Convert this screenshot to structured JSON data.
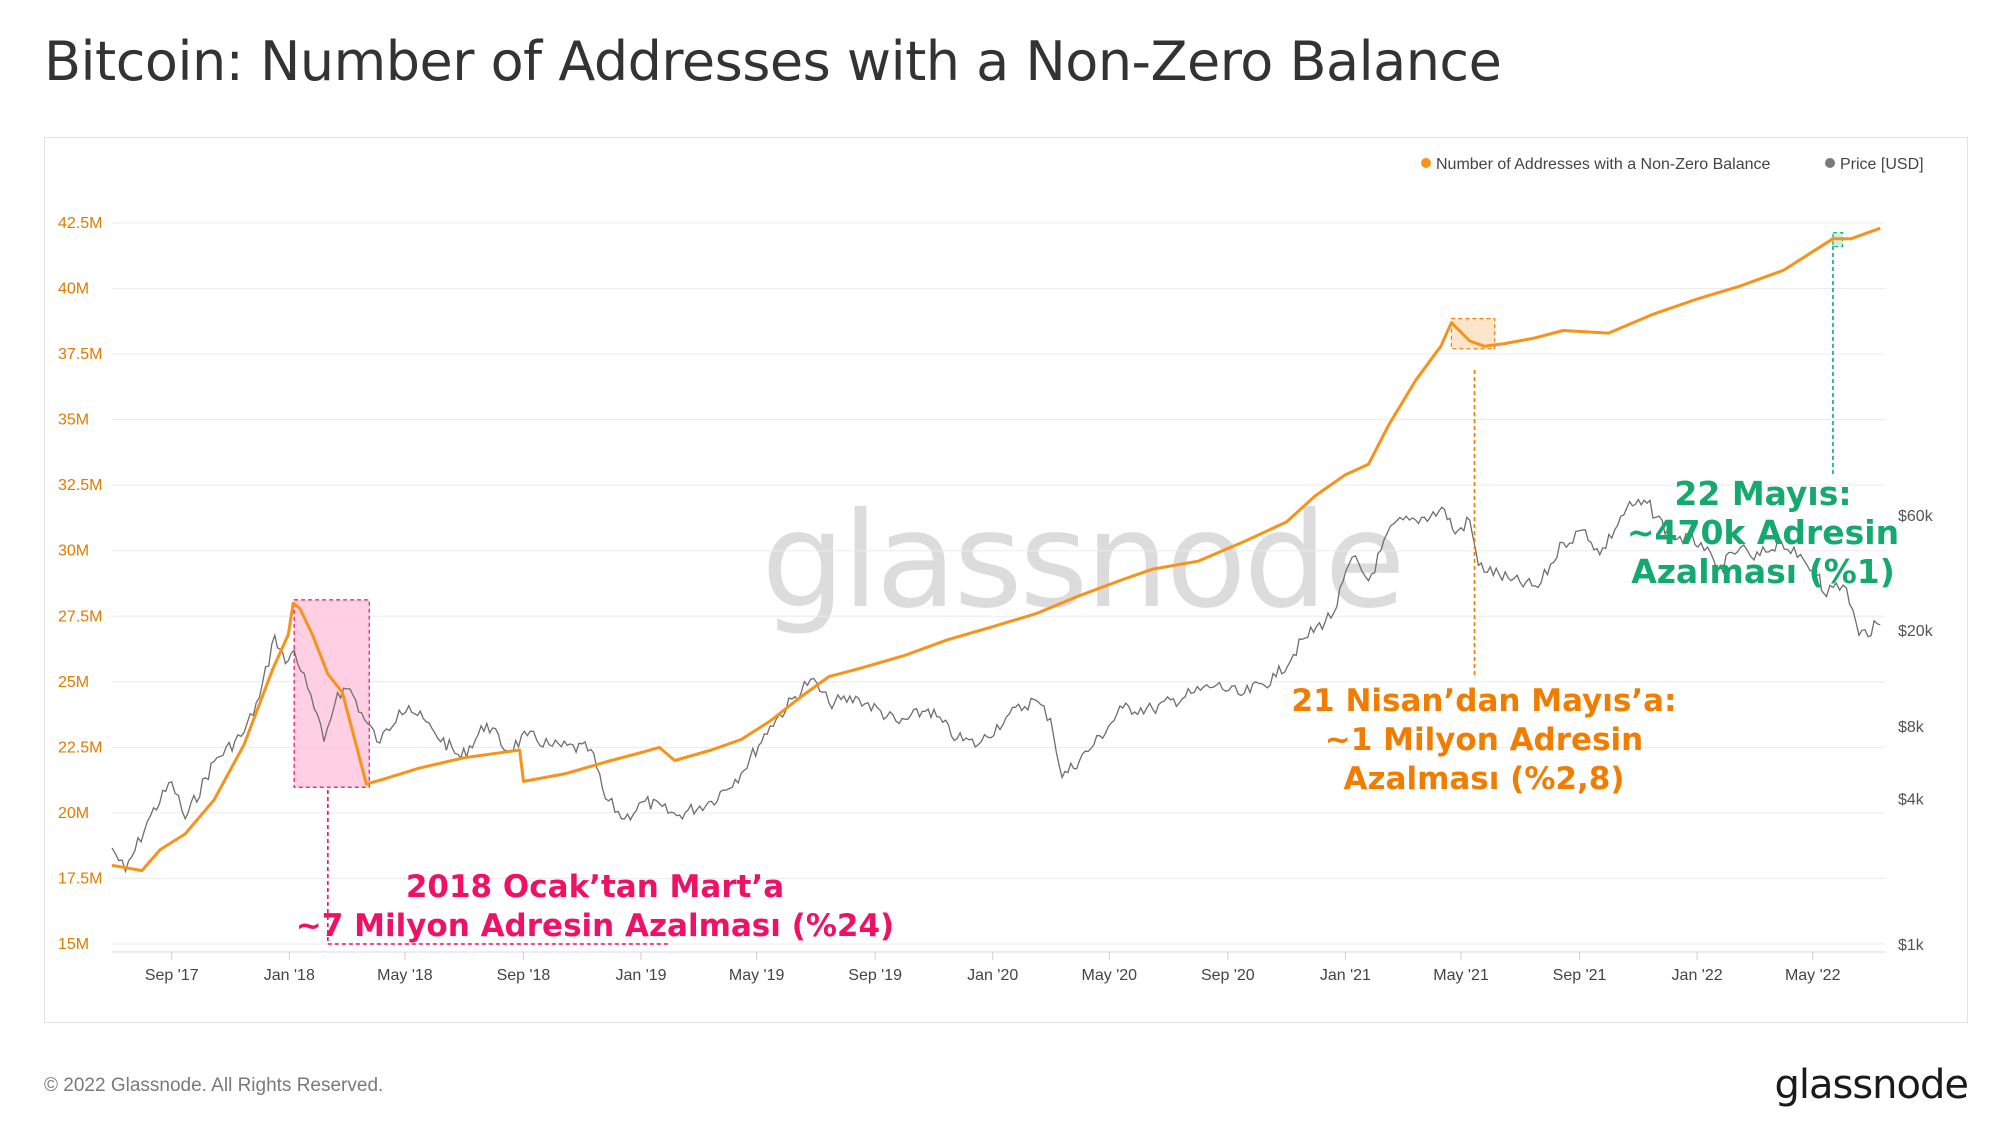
{
  "title": "Bitcoin: Number of Addresses with a Non-Zero Balance",
  "footer": "© 2022 Glassnode. All Rights Reserved.",
  "brand": "glassnode",
  "watermark": "glassnode",
  "colors": {
    "addresses": "#f7931a",
    "price": "#6e6e6e",
    "pink": "#ee1166",
    "green": "#15a86f",
    "orange_text": "#f07d00"
  },
  "chart_data": {
    "type": "line",
    "legend_placement": "top-right",
    "x_ticks": [
      "Sep '17",
      "Jan '18",
      "May '18",
      "Sep '18",
      "Jan '19",
      "May '19",
      "Sep '19",
      "Jan '20",
      "May '20",
      "Sep '20",
      "Jan '21",
      "May '21",
      "Sep '21",
      "Jan '22",
      "May '22"
    ],
    "y_left_ticks": [
      "15M",
      "17.5M",
      "20M",
      "22.5M",
      "25M",
      "27.5M",
      "30M",
      "32.5M",
      "35M",
      "37.5M",
      "40M",
      "42.5M"
    ],
    "y_left_values": [
      15,
      17.5,
      20,
      22.5,
      25,
      27.5,
      30,
      32.5,
      35,
      37.5,
      40,
      42.5
    ],
    "y_right_ticks": [
      "$1k",
      "$4k",
      "$8k",
      "$20k",
      "$60k"
    ],
    "y_right_values": [
      1000,
      4000,
      8000,
      20000,
      60000
    ],
    "y_right_scale": "log",
    "grid": "horizontal",
    "series": [
      {
        "name": "Number of Addresses with a Non-Zero Balance",
        "unit": "M",
        "points": [
          [
            "2017-07-01",
            18.0
          ],
          [
            "2017-08-01",
            17.8
          ],
          [
            "2017-08-20",
            18.6
          ],
          [
            "2017-09-15",
            19.2
          ],
          [
            "2017-10-15",
            20.5
          ],
          [
            "2017-11-15",
            22.6
          ],
          [
            "2017-12-15",
            25.5
          ],
          [
            "2017-12-31",
            26.8
          ],
          [
            "2018-01-05",
            28.0
          ],
          [
            "2018-01-12",
            27.8
          ],
          [
            "2018-01-25",
            26.8
          ],
          [
            "2018-02-10",
            25.3
          ],
          [
            "2018-02-25",
            24.6
          ],
          [
            "2018-03-12",
            22.5
          ],
          [
            "2018-03-22",
            21.1
          ],
          [
            "2018-04-10",
            21.3
          ],
          [
            "2018-05-15",
            21.7
          ],
          [
            "2018-07-01",
            22.1
          ],
          [
            "2018-08-28",
            22.4
          ],
          [
            "2018-09-01",
            21.2
          ],
          [
            "2018-10-15",
            21.5
          ],
          [
            "2018-12-01",
            22.0
          ],
          [
            "2019-01-01",
            22.3
          ],
          [
            "2019-01-20",
            22.5
          ],
          [
            "2019-02-05",
            22.0
          ],
          [
            "2019-03-15",
            22.4
          ],
          [
            "2019-04-15",
            22.8
          ],
          [
            "2019-05-15",
            23.5
          ],
          [
            "2019-06-15",
            24.4
          ],
          [
            "2019-07-15",
            25.2
          ],
          [
            "2019-08-15",
            25.5
          ],
          [
            "2019-10-01",
            26.0
          ],
          [
            "2019-11-15",
            26.6
          ],
          [
            "2020-01-01",
            27.1
          ],
          [
            "2020-02-15",
            27.6
          ],
          [
            "2020-04-01",
            28.3
          ],
          [
            "2020-05-15",
            28.9
          ],
          [
            "2020-06-15",
            29.3
          ],
          [
            "2020-08-01",
            29.6
          ],
          [
            "2020-09-15",
            30.3
          ],
          [
            "2020-11-01",
            31.1
          ],
          [
            "2020-12-01",
            32.1
          ],
          [
            "2021-01-01",
            32.9
          ],
          [
            "2021-01-25",
            33.3
          ],
          [
            "2021-02-15",
            34.8
          ],
          [
            "2021-03-15",
            36.5
          ],
          [
            "2021-04-10",
            37.8
          ],
          [
            "2021-04-21",
            38.7
          ],
          [
            "2021-05-10",
            38.0
          ],
          [
            "2021-05-25",
            37.8
          ],
          [
            "2021-06-15",
            37.9
          ],
          [
            "2021-07-15",
            38.1
          ],
          [
            "2021-08-15",
            38.4
          ],
          [
            "2021-10-01",
            38.3
          ],
          [
            "2021-11-15",
            39.0
          ],
          [
            "2022-01-01",
            39.6
          ],
          [
            "2022-02-15",
            40.1
          ],
          [
            "2022-04-01",
            40.7
          ],
          [
            "2022-05-22",
            41.9
          ],
          [
            "2022-06-10",
            41.9
          ],
          [
            "2022-07-10",
            42.3
          ]
        ]
      },
      {
        "name": "Price [USD]",
        "unit": "USD",
        "points": [
          [
            "2017-07-01",
            2500
          ],
          [
            "2017-07-15",
            2000
          ],
          [
            "2017-08-10",
            3400
          ],
          [
            "2017-09-01",
            4700
          ],
          [
            "2017-09-15",
            3300
          ],
          [
            "2017-10-15",
            5700
          ],
          [
            "2017-11-15",
            7500
          ],
          [
            "2017-12-01",
            10500
          ],
          [
            "2017-12-17",
            19000
          ],
          [
            "2017-12-28",
            14500
          ],
          [
            "2018-01-06",
            16500
          ],
          [
            "2018-01-20",
            11500
          ],
          [
            "2018-02-06",
            6900
          ],
          [
            "2018-02-20",
            11000
          ],
          [
            "2018-03-05",
            11400
          ],
          [
            "2018-03-20",
            8500
          ],
          [
            "2018-04-05",
            6800
          ],
          [
            "2018-04-25",
            9300
          ],
          [
            "2018-05-05",
            9700
          ],
          [
            "2018-06-01",
            7500
          ],
          [
            "2018-06-28",
            5900
          ],
          [
            "2018-07-25",
            8200
          ],
          [
            "2018-08-15",
            6300
          ],
          [
            "2018-09-05",
            7300
          ],
          [
            "2018-10-01",
            6600
          ],
          [
            "2018-11-10",
            6400
          ],
          [
            "2018-11-25",
            4000
          ],
          [
            "2018-12-15",
            3300
          ],
          [
            "2019-01-05",
            3900
          ],
          [
            "2019-02-07",
            3400
          ],
          [
            "2019-03-15",
            3900
          ],
          [
            "2019-04-15",
            5100
          ],
          [
            "2019-05-15",
            8000
          ],
          [
            "2019-06-26",
            12500
          ],
          [
            "2019-07-15",
            10000
          ],
          [
            "2019-08-15",
            10400
          ],
          [
            "2019-09-26",
            8200
          ],
          [
            "2019-10-26",
            9400
          ],
          [
            "2019-11-25",
            7100
          ],
          [
            "2019-12-17",
            6700
          ],
          [
            "2020-01-15",
            8700
          ],
          [
            "2020-02-13",
            10300
          ],
          [
            "2020-03-01",
            8600
          ],
          [
            "2020-03-13",
            4900
          ],
          [
            "2020-04-15",
            6700
          ],
          [
            "2020-05-15",
            9500
          ],
          [
            "2020-06-15",
            9400
          ],
          [
            "2020-07-28",
            11000
          ],
          [
            "2020-08-20",
            11800
          ],
          [
            "2020-09-15",
            10700
          ],
          [
            "2020-10-21",
            12800
          ],
          [
            "2020-11-20",
            18500
          ],
          [
            "2020-12-20",
            23500
          ],
          [
            "2021-01-08",
            40000
          ],
          [
            "2021-01-25",
            32000
          ],
          [
            "2021-02-20",
            55000
          ],
          [
            "2021-03-15",
            57000
          ],
          [
            "2021-04-14",
            63000
          ],
          [
            "2021-04-25",
            50000
          ],
          [
            "2021-05-10",
            57000
          ],
          [
            "2021-05-19",
            37000
          ],
          [
            "2021-06-22",
            32000
          ],
          [
            "2021-07-20",
            30000
          ],
          [
            "2021-08-15",
            46000
          ],
          [
            "2021-09-07",
            52000
          ],
          [
            "2021-09-22",
            41000
          ],
          [
            "2021-10-20",
            64000
          ],
          [
            "2021-11-10",
            67000
          ],
          [
            "2021-12-05",
            49000
          ],
          [
            "2022-01-05",
            46000
          ],
          [
            "2022-01-22",
            35000
          ],
          [
            "2022-02-15",
            44000
          ],
          [
            "2022-03-01",
            39000
          ],
          [
            "2022-03-29",
            47000
          ],
          [
            "2022-04-15",
            40000
          ],
          [
            "2022-05-08",
            34000
          ],
          [
            "2022-05-12",
            28500
          ],
          [
            "2022-05-22",
            30000
          ],
          [
            "2022-06-05",
            29800
          ],
          [
            "2022-06-18",
            19000
          ],
          [
            "2022-07-10",
            21000
          ]
        ]
      }
    ],
    "highlights": [
      {
        "from": "2018-01-06",
        "to": "2018-03-25",
        "color": "pink"
      },
      {
        "from": "2021-04-21",
        "to": "2021-06-05",
        "color": "orange"
      },
      {
        "from": "2022-05-22",
        "to": "2022-06-01",
        "color": "green"
      }
    ],
    "annotations": [
      {
        "id": "pink",
        "lines": [
          "2018 Ocak’tan Mart’a",
          "~7 Milyon Adresin Azalması (%24)"
        ]
      },
      {
        "id": "orange",
        "lines": [
          "21 Nisan’dan Mayıs’a:",
          "~1 Milyon Adresin",
          "Azalması (%2,8)"
        ]
      },
      {
        "id": "green",
        "lines": [
          "22 Mayıs:",
          "~470k Adresin",
          "Azalması (%1)"
        ]
      }
    ]
  }
}
